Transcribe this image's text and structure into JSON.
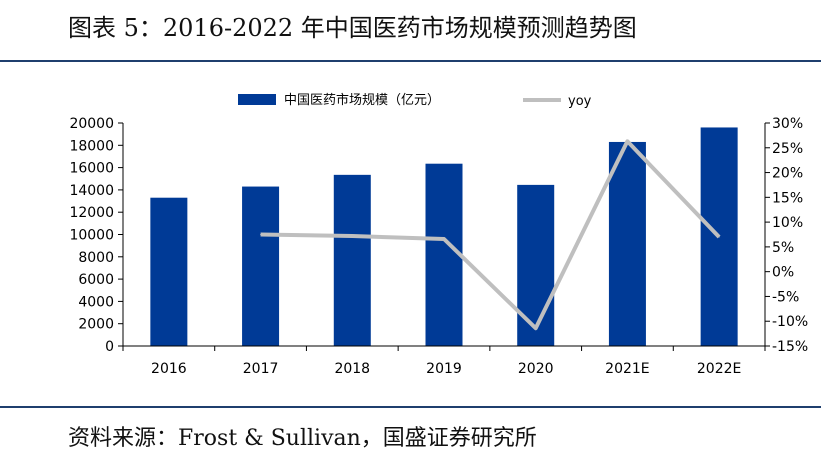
{
  "header": {
    "title": "图表 5：2016-2022 年中国医药市场规模预测趋势图"
  },
  "footer": {
    "source": "资料来源：Frost & Sullivan，国盛证券研究所"
  },
  "chart_data": {
    "type": "bar",
    "categories": [
      "2016",
      "2017",
      "2018",
      "2019",
      "2020",
      "2021E",
      "2022E"
    ],
    "series": [
      {
        "name": "中国医药市场规模（亿元）",
        "type": "bar",
        "axis": "left",
        "values": [
          13300,
          14300,
          15350,
          16350,
          14450,
          18300,
          19600
        ],
        "color": "#003a96"
      },
      {
        "name": "yoy",
        "type": "line",
        "axis": "right",
        "values": [
          null,
          7.5,
          7.2,
          6.6,
          -11.4,
          26.3,
          7.0
        ],
        "color": "#bfbfbf"
      }
    ],
    "y_left": {
      "ylim": [
        0,
        20000
      ],
      "ticks": [
        "0",
        "2000",
        "4000",
        "6000",
        "8000",
        "10000",
        "12000",
        "14000",
        "16000",
        "18000",
        "20000"
      ]
    },
    "y_right": {
      "ylim": [
        -15,
        30
      ],
      "ticks": [
        "-15%",
        "-10%",
        "-5%",
        "0%",
        "5%",
        "10%",
        "15%",
        "20%",
        "25%",
        "30%"
      ]
    },
    "legend": "top-center",
    "grid": false
  }
}
